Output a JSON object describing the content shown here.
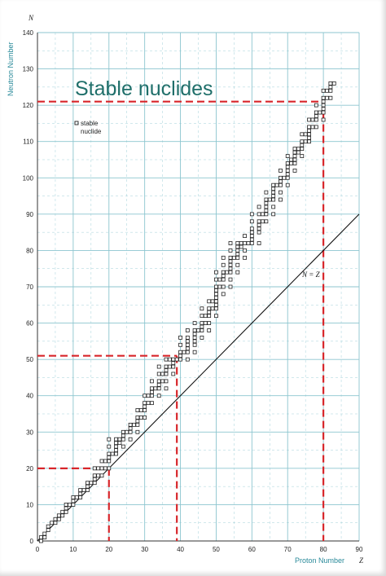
{
  "chart_data": {
    "type": "scatter",
    "title": "Stable nuclides",
    "xlabel": "Proton Number",
    "ylabel": "Neutron Number",
    "x_symbol": "Z",
    "y_symbol": "N",
    "xlim": [
      0,
      90
    ],
    "ylim": [
      0,
      140
    ],
    "x_ticks": [
      0,
      10,
      20,
      30,
      40,
      50,
      60,
      70,
      80,
      90
    ],
    "y_ticks": [
      0,
      10,
      20,
      30,
      40,
      50,
      60,
      70,
      80,
      90,
      100,
      110,
      120,
      130,
      140
    ],
    "grid": true,
    "legend": {
      "label_line1": "stable",
      "label_line2": "nuclide",
      "position": "top-left"
    },
    "reference_line": {
      "label": "N = Z",
      "from": [
        0,
        0
      ],
      "to": [
        90,
        90
      ]
    },
    "highlight_lines": [
      {
        "x": 20,
        "y": 20
      },
      {
        "x": 39,
        "y": 51
      },
      {
        "x": 80,
        "y": 121
      }
    ],
    "colors": {
      "grid": "#8cc5cf",
      "highlight": "#d8262b",
      "points": "#222222",
      "title": "#1f6f6a",
      "axis_label": "#2a8a9a"
    },
    "points": [
      [
        1,
        0
      ],
      [
        1,
        1
      ],
      [
        2,
        1
      ],
      [
        2,
        2
      ],
      [
        3,
        3
      ],
      [
        3,
        4
      ],
      [
        4,
        5
      ],
      [
        5,
        5
      ],
      [
        5,
        6
      ],
      [
        6,
        6
      ],
      [
        6,
        7
      ],
      [
        7,
        7
      ],
      [
        7,
        8
      ],
      [
        8,
        8
      ],
      [
        8,
        9
      ],
      [
        8,
        10
      ],
      [
        9,
        10
      ],
      [
        10,
        10
      ],
      [
        10,
        11
      ],
      [
        10,
        12
      ],
      [
        11,
        12
      ],
      [
        12,
        12
      ],
      [
        12,
        13
      ],
      [
        12,
        14
      ],
      [
        13,
        14
      ],
      [
        14,
        14
      ],
      [
        14,
        15
      ],
      [
        14,
        16
      ],
      [
        15,
        16
      ],
      [
        16,
        16
      ],
      [
        16,
        17
      ],
      [
        16,
        18
      ],
      [
        16,
        20
      ],
      [
        17,
        18
      ],
      [
        17,
        20
      ],
      [
        18,
        18
      ],
      [
        18,
        20
      ],
      [
        18,
        22
      ],
      [
        19,
        20
      ],
      [
        19,
        22
      ],
      [
        20,
        20
      ],
      [
        20,
        22
      ],
      [
        20,
        23
      ],
      [
        20,
        24
      ],
      [
        20,
        26
      ],
      [
        20,
        28
      ],
      [
        21,
        24
      ],
      [
        22,
        24
      ],
      [
        22,
        25
      ],
      [
        22,
        26
      ],
      [
        22,
        27
      ],
      [
        22,
        28
      ],
      [
        23,
        27
      ],
      [
        23,
        28
      ],
      [
        24,
        26
      ],
      [
        24,
        28
      ],
      [
        24,
        29
      ],
      [
        24,
        30
      ],
      [
        25,
        30
      ],
      [
        26,
        28
      ],
      [
        26,
        30
      ],
      [
        26,
        31
      ],
      [
        26,
        32
      ],
      [
        27,
        32
      ],
      [
        28,
        30
      ],
      [
        28,
        32
      ],
      [
        28,
        33
      ],
      [
        28,
        34
      ],
      [
        28,
        36
      ],
      [
        29,
        34
      ],
      [
        29,
        36
      ],
      [
        30,
        34
      ],
      [
        30,
        36
      ],
      [
        30,
        37
      ],
      [
        30,
        38
      ],
      [
        30,
        40
      ],
      [
        31,
        38
      ],
      [
        31,
        40
      ],
      [
        32,
        38
      ],
      [
        32,
        40
      ],
      [
        32,
        41
      ],
      [
        32,
        42
      ],
      [
        32,
        44
      ],
      [
        33,
        42
      ],
      [
        34,
        40
      ],
      [
        34,
        42
      ],
      [
        34,
        43
      ],
      [
        34,
        44
      ],
      [
        34,
        46
      ],
      [
        34,
        48
      ],
      [
        35,
        44
      ],
      [
        35,
        46
      ],
      [
        36,
        42
      ],
      [
        36,
        44
      ],
      [
        36,
        46
      ],
      [
        36,
        47
      ],
      [
        36,
        48
      ],
      [
        36,
        50
      ],
      [
        37,
        48
      ],
      [
        37,
        50
      ],
      [
        38,
        46
      ],
      [
        38,
        48
      ],
      [
        38,
        49
      ],
      [
        38,
        50
      ],
      [
        39,
        50
      ],
      [
        40,
        50
      ],
      [
        40,
        51
      ],
      [
        40,
        52
      ],
      [
        40,
        54
      ],
      [
        40,
        56
      ],
      [
        41,
        52
      ],
      [
        42,
        50
      ],
      [
        42,
        52
      ],
      [
        42,
        53
      ],
      [
        42,
        54
      ],
      [
        42,
        55
      ],
      [
        42,
        56
      ],
      [
        42,
        58
      ],
      [
        44,
        52
      ],
      [
        44,
        54
      ],
      [
        44,
        55
      ],
      [
        44,
        56
      ],
      [
        44,
        57
      ],
      [
        44,
        58
      ],
      [
        44,
        60
      ],
      [
        45,
        58
      ],
      [
        46,
        56
      ],
      [
        46,
        58
      ],
      [
        46,
        59
      ],
      [
        46,
        60
      ],
      [
        46,
        62
      ],
      [
        46,
        64
      ],
      [
        47,
        60
      ],
      [
        47,
        62
      ],
      [
        48,
        58
      ],
      [
        48,
        60
      ],
      [
        48,
        62
      ],
      [
        48,
        63
      ],
      [
        48,
        64
      ],
      [
        48,
        66
      ],
      [
        49,
        64
      ],
      [
        49,
        66
      ],
      [
        50,
        62
      ],
      [
        50,
        64
      ],
      [
        50,
        65
      ],
      [
        50,
        66
      ],
      [
        50,
        67
      ],
      [
        50,
        68
      ],
      [
        50,
        69
      ],
      [
        50,
        70
      ],
      [
        50,
        72
      ],
      [
        50,
        74
      ],
      [
        51,
        70
      ],
      [
        51,
        72
      ],
      [
        52,
        68
      ],
      [
        52,
        70
      ],
      [
        52,
        72
      ],
      [
        52,
        73
      ],
      [
        52,
        74
      ],
      [
        52,
        76
      ],
      [
        52,
        78
      ],
      [
        53,
        74
      ],
      [
        54,
        70
      ],
      [
        54,
        72
      ],
      [
        54,
        74
      ],
      [
        54,
        75
      ],
      [
        54,
        76
      ],
      [
        54,
        77
      ],
      [
        54,
        78
      ],
      [
        54,
        80
      ],
      [
        54,
        82
      ],
      [
        55,
        78
      ],
      [
        56,
        74
      ],
      [
        56,
        76
      ],
      [
        56,
        78
      ],
      [
        56,
        79
      ],
      [
        56,
        80
      ],
      [
        56,
        81
      ],
      [
        56,
        82
      ],
      [
        57,
        81
      ],
      [
        57,
        82
      ],
      [
        58,
        78
      ],
      [
        58,
        80
      ],
      [
        58,
        82
      ],
      [
        58,
        84
      ],
      [
        59,
        82
      ],
      [
        60,
        82
      ],
      [
        60,
        83
      ],
      [
        60,
        84
      ],
      [
        60,
        85
      ],
      [
        60,
        86
      ],
      [
        60,
        88
      ],
      [
        60,
        90
      ],
      [
        62,
        82
      ],
      [
        62,
        85
      ],
      [
        62,
        86
      ],
      [
        62,
        87
      ],
      [
        62,
        88
      ],
      [
        62,
        90
      ],
      [
        62,
        92
      ],
      [
        63,
        88
      ],
      [
        63,
        90
      ],
      [
        64,
        88
      ],
      [
        64,
        90
      ],
      [
        64,
        91
      ],
      [
        64,
        92
      ],
      [
        64,
        93
      ],
      [
        64,
        94
      ],
      [
        64,
        96
      ],
      [
        65,
        94
      ],
      [
        66,
        90
      ],
      [
        66,
        92
      ],
      [
        66,
        94
      ],
      [
        66,
        95
      ],
      [
        66,
        96
      ],
      [
        66,
        97
      ],
      [
        66,
        98
      ],
      [
        67,
        98
      ],
      [
        68,
        94
      ],
      [
        68,
        96
      ],
      [
        68,
        98
      ],
      [
        68,
        99
      ],
      [
        68,
        100
      ],
      [
        68,
        102
      ],
      [
        69,
        100
      ],
      [
        70,
        98
      ],
      [
        70,
        100
      ],
      [
        70,
        101
      ],
      [
        70,
        102
      ],
      [
        70,
        103
      ],
      [
        70,
        104
      ],
      [
        70,
        106
      ],
      [
        71,
        104
      ],
      [
        71,
        105
      ],
      [
        72,
        102
      ],
      [
        72,
        104
      ],
      [
        72,
        105
      ],
      [
        72,
        106
      ],
      [
        72,
        107
      ],
      [
        72,
        108
      ],
      [
        73,
        107
      ],
      [
        73,
        108
      ],
      [
        74,
        106
      ],
      [
        74,
        108
      ],
      [
        74,
        109
      ],
      [
        74,
        110
      ],
      [
        74,
        112
      ],
      [
        75,
        110
      ],
      [
        75,
        112
      ],
      [
        76,
        110
      ],
      [
        76,
        111
      ],
      [
        76,
        112
      ],
      [
        76,
        113
      ],
      [
        76,
        114
      ],
      [
        76,
        116
      ],
      [
        77,
        114
      ],
      [
        77,
        116
      ],
      [
        78,
        114
      ],
      [
        78,
        116
      ],
      [
        78,
        117
      ],
      [
        78,
        118
      ],
      [
        78,
        120
      ],
      [
        79,
        118
      ],
      [
        80,
        116
      ],
      [
        80,
        118
      ],
      [
        80,
        119
      ],
      [
        80,
        120
      ],
      [
        80,
        121
      ],
      [
        80,
        122
      ],
      [
        80,
        124
      ],
      [
        81,
        122
      ],
      [
        81,
        124
      ],
      [
        82,
        122
      ],
      [
        82,
        124
      ],
      [
        82,
        125
      ],
      [
        82,
        126
      ],
      [
        83,
        126
      ]
    ]
  }
}
